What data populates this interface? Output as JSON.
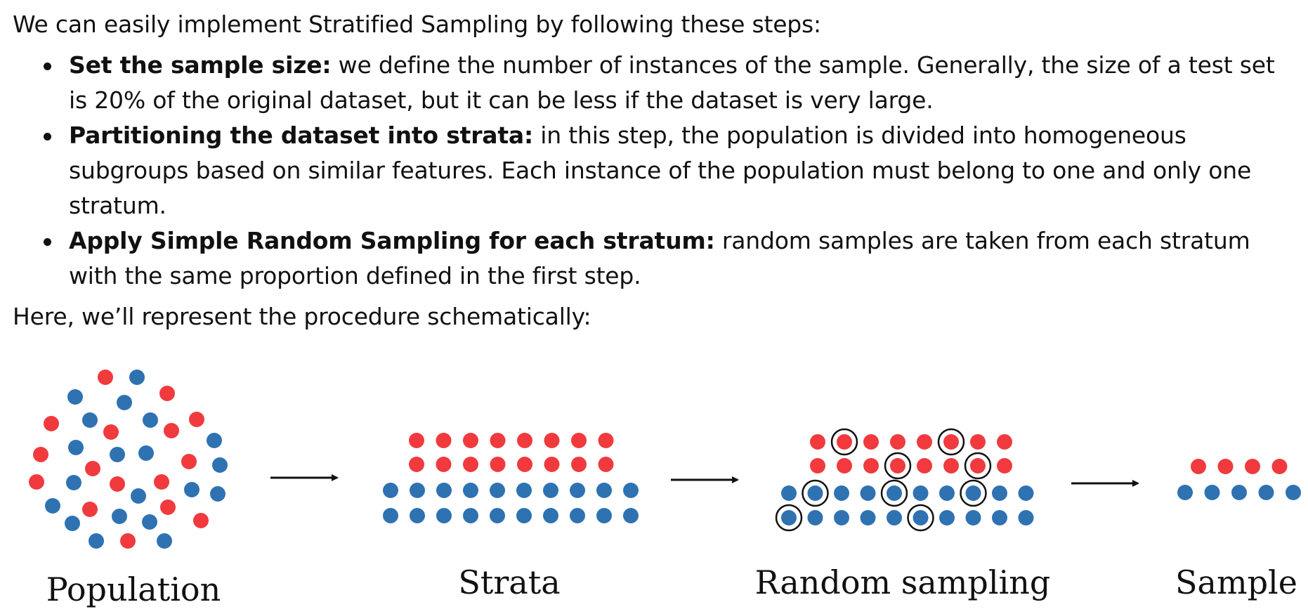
{
  "article": {
    "intro": "We can easily implement Stratified Sampling by following these steps:",
    "steps": [
      {
        "title": "Set the sample size:",
        "text": " we define the number of instances of the sample. Generally, the size of a test set is 20% of the original dataset, but it can be less if the dataset is very large."
      },
      {
        "title": "Partitioning the dataset into strata:",
        "text": " in this step, the population is divided into homogeneous subgroups based on similar features. Each instance of the population must belong to one and only one stratum."
      },
      {
        "title": "Apply Simple Random Sampling for each stratum:",
        "text": " random samples are taken from each stratum with the same proportion defined in the first step."
      }
    ],
    "outro": "Here, we’ll represent the procedure schematically:"
  },
  "diagram": {
    "colors": {
      "red": "#f03a3e",
      "blue": "#2f72b2",
      "arrow": "#111111",
      "ring": "#111111"
    },
    "captions": {
      "population": "Population",
      "strata": "Strata",
      "random_sampling": "Random sampling",
      "sample": "Sample"
    }
  }
}
